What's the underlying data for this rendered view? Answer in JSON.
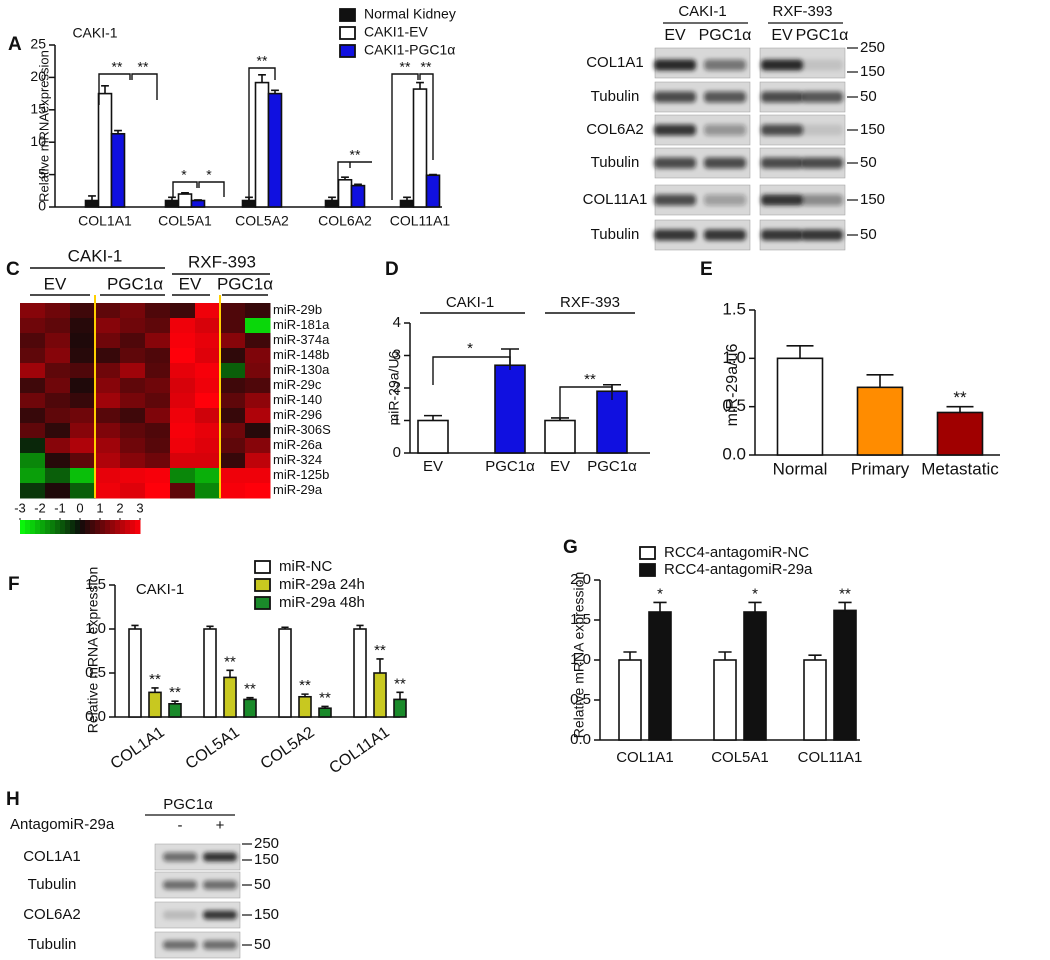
{
  "panel_labels": [
    "A",
    "C",
    "D",
    "E",
    "F",
    "G",
    "H"
  ],
  "chart_data": [
    {
      "type": "bar",
      "title": "CAKI-1",
      "ylabel": "Relative mRNAexpression",
      "categories": [
        "COL1A1",
        "COL5A1",
        "COL5A2",
        "COL6A2",
        "COL11A1"
      ],
      "series": [
        {
          "name": "Normal Kidney",
          "color": "#111111",
          "values": [
            1,
            1,
            1,
            1,
            1
          ],
          "errors": [
            0.7,
            0.5,
            0.5,
            0.5,
            0.5
          ]
        },
        {
          "name": "CAKI1-EV",
          "color": "#ffffff",
          "values": [
            17.5,
            2,
            19.2,
            4.2,
            18.2
          ],
          "errors": [
            1.2,
            0.2,
            1.2,
            0.4,
            1
          ]
        },
        {
          "name": "CAKI1-PGC1α",
          "color": "#1010e0",
          "values": [
            11.3,
            1,
            17.5,
            3.3,
            4.9
          ],
          "errors": [
            0.5,
            0.1,
            0.5,
            0.2,
            0.1
          ]
        }
      ],
      "ylim": [
        0,
        25
      ],
      "yticks": [
        0,
        5,
        10,
        15,
        20,
        25
      ],
      "grid": false,
      "legend": "top-right",
      "significance": [
        "**",
        "**",
        "*",
        "*",
        "**",
        "**",
        "**",
        "**"
      ]
    },
    {
      "type": "heatmap",
      "groups": [
        {
          "name": "CAKI-1",
          "subgroups": [
            "EV",
            "PGC1α"
          ]
        },
        {
          "name": "RXF-393",
          "subgroups": [
            "EV",
            "PGC1α"
          ]
        }
      ],
      "rows": [
        "miR-29b",
        "miR-181a",
        "miR-374a",
        "miR-148b",
        "miR-130a",
        "miR-29c",
        "miR-140",
        "miR-296",
        "miR-306S",
        "miR-26a",
        "miR-324",
        "miR-125b",
        "miR-29a"
      ],
      "values": [
        [
          1.5,
          1.2,
          0.6,
          1.0,
          1.3,
          0.8,
          0.6,
          2.8,
          0.8,
          0.5
        ],
        [
          1.2,
          1.0,
          0.3,
          1.5,
          1.2,
          1.0,
          2.8,
          2.5,
          0.8,
          -2.5
        ],
        [
          0.8,
          1.3,
          0.2,
          1.2,
          0.8,
          1.5,
          2.9,
          2.7,
          1.5,
          0.6
        ],
        [
          1.0,
          1.5,
          0.3,
          0.5,
          1.0,
          0.8,
          3.0,
          2.6,
          0.4,
          1.4
        ],
        [
          1.8,
          1.0,
          0.8,
          1.2,
          1.8,
          0.9,
          2.7,
          2.9,
          -1.0,
          1.3
        ],
        [
          0.6,
          1.2,
          0.2,
          1.5,
          1.0,
          1.2,
          2.5,
          2.8,
          0.6,
          0.8
        ],
        [
          1.2,
          0.8,
          0.5,
          1.8,
          1.3,
          1.0,
          2.6,
          3.0,
          1.0,
          1.6
        ],
        [
          0.5,
          1.0,
          1.2,
          0.9,
          0.6,
          1.4,
          2.8,
          2.4,
          0.5,
          2.0
        ],
        [
          1.0,
          0.4,
          1.5,
          1.4,
          1.0,
          0.8,
          2.9,
          2.7,
          1.2,
          0.3
        ],
        [
          -0.3,
          1.5,
          2.0,
          1.8,
          1.2,
          0.9,
          2.8,
          2.6,
          1.0,
          1.5
        ],
        [
          -1.5,
          0.3,
          1.0,
          2.0,
          1.5,
          1.2,
          2.5,
          2.5,
          0.5,
          2.2
        ],
        [
          -1.8,
          -1.0,
          -2.2,
          2.7,
          2.8,
          2.9,
          -1.5,
          -2.0,
          2.8,
          2.8
        ],
        [
          -0.5,
          0.2,
          -1.0,
          2.8,
          2.6,
          3.0,
          1.0,
          -1.5,
          2.9,
          3.0
        ]
      ],
      "clim": [
        -3,
        3
      ],
      "cticks": [
        -3,
        -2,
        -1,
        0,
        1,
        2,
        3
      ]
    },
    {
      "type": "bar",
      "ylabel": "miR-29a/U6",
      "groups": [
        "CAKI-1",
        "RXF-393"
      ],
      "categories": [
        "EV",
        "PGC1α",
        "EV",
        "PGC1α"
      ],
      "values": [
        1,
        2.7,
        1,
        1.9
      ],
      "errors": [
        0.15,
        0.5,
        0.08,
        0.2
      ],
      "colors": [
        "#ffffff",
        "#1010e0",
        "#ffffff",
        "#1010e0"
      ],
      "ylim": [
        0,
        4
      ],
      "yticks": [
        0,
        1,
        2,
        3,
        4
      ],
      "grid": false,
      "significance": [
        "*",
        "**"
      ]
    },
    {
      "type": "bar",
      "ylabel": "miR-29a/u6",
      "categories": [
        "Normal",
        "Primary",
        "Metastatic"
      ],
      "values": [
        1,
        0.7,
        0.44
      ],
      "errors": [
        0.13,
        0.13,
        0.06
      ],
      "colors": [
        "#ffffff",
        "#ff8c00",
        "#a00000"
      ],
      "value_significance": [
        null,
        null,
        "**"
      ],
      "ylim": [
        0,
        1.5
      ],
      "yticks": [
        {
          "value": 0,
          "label": "0.0"
        },
        0.5,
        {
          "value": 1,
          "label": "1.0"
        },
        1.5
      ],
      "grid": false
    },
    {
      "type": "bar",
      "title": "CAKI-1",
      "ylabel": "Relative mRNA expression",
      "categories": [
        "COL1A1",
        "COL5A1",
        "COL5A2",
        "COL11A1"
      ],
      "series": [
        {
          "name": "miR-NC",
          "color": "#ffffff",
          "values": [
            1,
            1,
            1,
            1
          ],
          "errors": [
            0.04,
            0.03,
            0.02,
            0.04
          ]
        },
        {
          "name": "miR-29a 24h",
          "color": "#c8c820",
          "values": [
            0.28,
            0.45,
            0.23,
            0.5
          ],
          "errors": [
            0.05,
            0.08,
            0.03,
            0.16
          ],
          "significance": [
            "**",
            "**",
            "**",
            "**"
          ]
        },
        {
          "name": "miR-29a 48h",
          "color": "#1a8a2a",
          "values": [
            0.15,
            0.2,
            0.1,
            0.2
          ],
          "errors": [
            0.03,
            0.02,
            0.02,
            0.08
          ],
          "significance": [
            "**",
            "**",
            "**",
            "**"
          ]
        }
      ],
      "ylim": [
        0,
        1.5
      ],
      "yticks": [
        {
          "value": 0,
          "label": "0.0"
        },
        0.5,
        {
          "value": 1,
          "label": "1.0"
        },
        1.5
      ],
      "grid": false,
      "legend": "top-right"
    },
    {
      "type": "bar",
      "ylabel": "Relative mRNA expression",
      "categories": [
        "COL1A1",
        "COL5A1",
        "COL11A1"
      ],
      "series": [
        {
          "name": "RCC4-antagomiR-NC",
          "color": "#ffffff",
          "values": [
            1,
            1,
            1
          ],
          "errors": [
            0.1,
            0.1,
            0.06
          ]
        },
        {
          "name": "RCC4-antagomiR-29a",
          "color": "#111111",
          "values": [
            1.6,
            1.6,
            1.62
          ],
          "errors": [
            0.12,
            0.12,
            0.1
          ],
          "significance": [
            "*",
            "*",
            "**"
          ]
        }
      ],
      "ylim": [
        0,
        2
      ],
      "yticks": [
        {
          "value": 0,
          "label": "0.0"
        },
        0.5,
        {
          "value": 1,
          "label": "1.0"
        },
        1.5,
        {
          "value": 2,
          "label": "2.0"
        }
      ],
      "grid": false,
      "legend": "top"
    }
  ],
  "blots": [
    {
      "groups": [
        {
          "name": "CAKI-1",
          "lanes": [
            "EV",
            "PGC1α"
          ]
        },
        {
          "name": "RXF-393",
          "lanes": [
            "EV",
            "PGC1α"
          ]
        }
      ],
      "rows": [
        {
          "label": "COL1A1",
          "markers": [
            250,
            150
          ]
        },
        {
          "label": "Tubulin",
          "markers": [
            50
          ]
        },
        {
          "label": "COL6A2",
          "markers": [
            150
          ]
        },
        {
          "label": "Tubulin",
          "markers": [
            50
          ]
        },
        {
          "label": "COL11A1",
          "markers": [
            150
          ]
        },
        {
          "label": "Tubulin",
          "markers": [
            50
          ]
        }
      ]
    },
    {
      "header": "PGC1α",
      "treatment": "AntagomiR-29a",
      "lanes": [
        "-",
        "+"
      ],
      "rows": [
        {
          "label": "COL1A1",
          "markers": [
            250,
            150
          ]
        },
        {
          "label": "Tubulin",
          "markers": [
            50
          ]
        },
        {
          "label": "COL6A2",
          "markers": [
            150
          ]
        },
        {
          "label": "Tubulin",
          "markers": [
            50
          ]
        }
      ]
    }
  ]
}
